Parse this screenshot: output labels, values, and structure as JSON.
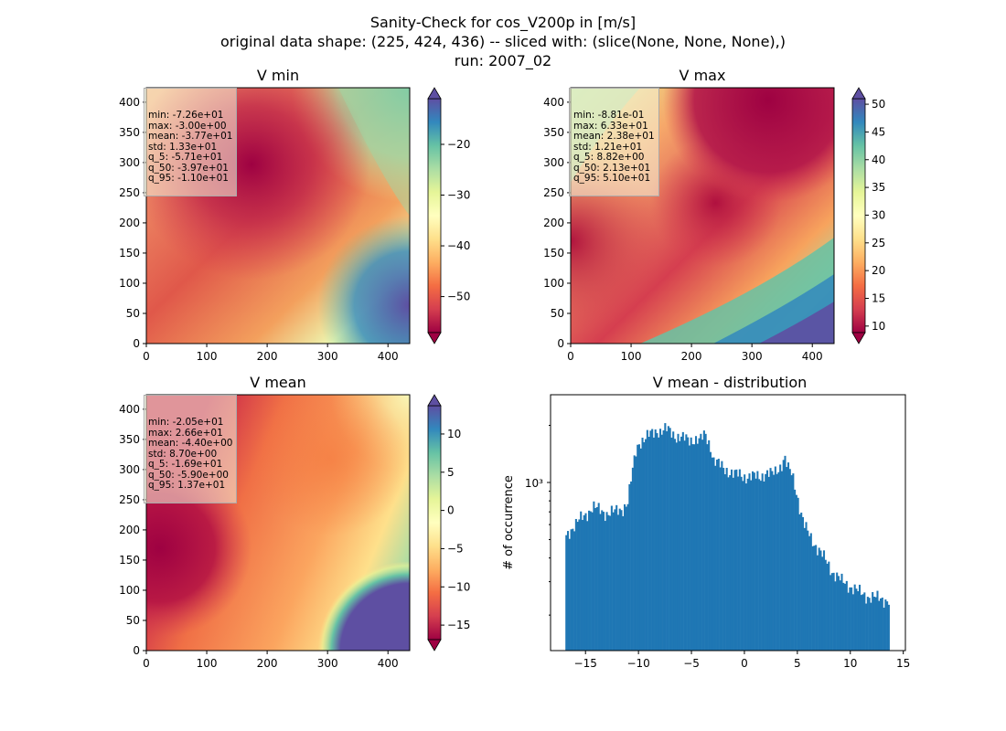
{
  "suptitle": {
    "line1": "Sanity-Check for cos_V200p in [m/s]",
    "line2": "original data shape: (225, 424, 436) -- sliced with: (slice(None, None, None),)",
    "line3": "run: 2007_02"
  },
  "chart_data": [
    {
      "type": "heatmap",
      "title": "V min",
      "xlim": [
        0,
        436
      ],
      "ylim": [
        0,
        424
      ],
      "xticks": [
        "0",
        "100",
        "200",
        "300",
        "400"
      ],
      "yticks": [
        "0",
        "50",
        "100",
        "150",
        "200",
        "250",
        "300",
        "350",
        "400"
      ],
      "colorbar": {
        "cmap": "Spectral",
        "range": [
          -57.1,
          -11.0
        ],
        "ticks": [
          "−50",
          "−40",
          "−30",
          "−20"
        ],
        "tick_values": [
          -50,
          -40,
          -30,
          -20
        ],
        "extend": "both"
      },
      "stats": [
        "min: -7.26e+01",
        "max: -3.00e+00",
        "mean: -3.77e+01",
        "std: 1.33e+01",
        "q_5: -5.71e+01",
        "q_50: -3.97e+01",
        "q_95: -1.10e+01"
      ]
    },
    {
      "type": "heatmap",
      "title": "V max",
      "xlim": [
        0,
        436
      ],
      "ylim": [
        0,
        424
      ],
      "xticks": [
        "0",
        "100",
        "200",
        "300",
        "400"
      ],
      "yticks": [
        "0",
        "50",
        "100",
        "150",
        "200",
        "250",
        "300",
        "350",
        "400"
      ],
      "colorbar": {
        "cmap": "Spectral",
        "range": [
          8.82,
          51.0
        ],
        "ticks": [
          "10",
          "15",
          "20",
          "25",
          "30",
          "35",
          "40",
          "45",
          "50"
        ],
        "tick_values": [
          10,
          15,
          20,
          25,
          30,
          35,
          40,
          45,
          50
        ],
        "extend": "both"
      },
      "stats": [
        "min: -8.81e-01",
        "max: 6.33e+01",
        "mean: 2.38e+01",
        "std: 1.21e+01",
        "q_5: 8.82e+00",
        "q_50: 2.13e+01",
        "q_95: 5.10e+01"
      ]
    },
    {
      "type": "heatmap",
      "title": "V mean",
      "xlim": [
        0,
        436
      ],
      "ylim": [
        0,
        424
      ],
      "xticks": [
        "0",
        "100",
        "200",
        "300",
        "400"
      ],
      "yticks": [
        "0",
        "50",
        "100",
        "150",
        "200",
        "250",
        "300",
        "350",
        "400"
      ],
      "colorbar": {
        "cmap": "Spectral",
        "range": [
          -16.9,
          13.7
        ],
        "ticks": [
          "−15",
          "−10",
          "−5",
          "0",
          "5",
          "10"
        ],
        "tick_values": [
          -15,
          -10,
          -5,
          0,
          5,
          10
        ],
        "extend": "both"
      },
      "stats": [
        "min: -2.05e+01",
        "max: 2.66e+01",
        "mean: -4.40e+00",
        "std: 8.70e+00",
        "q_5: -1.69e+01",
        "q_50: -5.90e+00",
        "q_95: 1.37e+01"
      ]
    },
    {
      "type": "bar",
      "title": "V mean - distribution",
      "ylabel": "# of occurrence",
      "yscale": "log",
      "xlim": [
        -18.3,
        15.2
      ],
      "ylim": [
        130,
        2900
      ],
      "xticks": [
        "−15",
        "−10",
        "−5",
        "0",
        "5",
        "10",
        "15"
      ],
      "xtick_values": [
        -15,
        -10,
        -5,
        0,
        5,
        10,
        15
      ],
      "yticks": [
        "10³"
      ],
      "ytick_values": [
        1000
      ],
      "bin_range": [
        -16.9,
        13.7
      ],
      "bins": 200,
      "color": "#1f77b4",
      "profile_x": [
        -16.9,
        -16.5,
        -15.9,
        -15.5,
        -15.0,
        -14.3,
        -13.8,
        -13.0,
        -12.2,
        -11.5,
        -11.0,
        -10.6,
        -10.2,
        -9.9,
        -9.4,
        -8.8,
        -8.2,
        -7.9,
        -7.4,
        -6.9,
        -6.4,
        -5.8,
        -5.2,
        -4.7,
        -4.2,
        -3.7,
        -3.2,
        -2.9,
        -2.5,
        -2.0,
        -1.5,
        -1.0,
        -0.5,
        0.0,
        0.5,
        1.0,
        1.5,
        2.0,
        2.6,
        3.0,
        3.5,
        3.8,
        4.1,
        4.5,
        4.9,
        5.3,
        5.7,
        6.2,
        6.8,
        7.5,
        8.3,
        9.2,
        10.2,
        11.0,
        11.8,
        12.6,
        13.7
      ],
      "profile_y": [
        520,
        560,
        600,
        640,
        680,
        740,
        720,
        690,
        700,
        730,
        790,
        1100,
        1500,
        1650,
        1700,
        1800,
        1900,
        1850,
        1900,
        1850,
        1750,
        1700,
        1680,
        1700,
        1650,
        1800,
        1550,
        1300,
        1250,
        1200,
        1150,
        1100,
        1100,
        1080,
        1070,
        1070,
        1080,
        1120,
        1100,
        1150,
        1250,
        1350,
        1180,
        1100,
        900,
        700,
        580,
        520,
        460,
        400,
        340,
        300,
        280,
        260,
        250,
        245,
        240
      ]
    }
  ]
}
